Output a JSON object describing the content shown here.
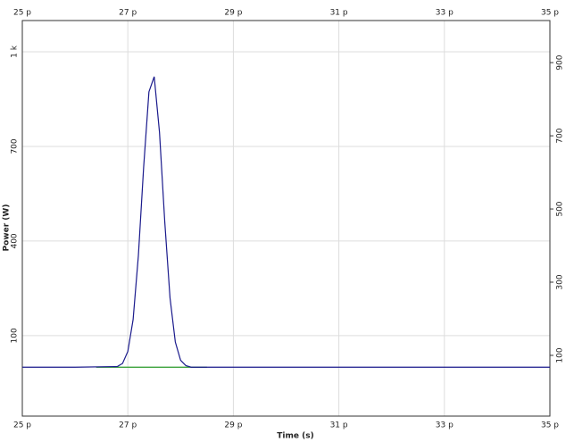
{
  "chart_data": {
    "type": "line",
    "x_label": "Time (s)",
    "y_label": "Power (W)",
    "xlim": [
      2.5e-11,
      3.5e-11
    ],
    "xticks": [
      {
        "value": 2.5e-11,
        "label": "25 p"
      },
      {
        "value": 2.7e-11,
        "label": "27 p"
      },
      {
        "value": 2.9e-11,
        "label": "29 p"
      },
      {
        "value": 3.1e-11,
        "label": "31 p"
      },
      {
        "value": 3.3e-11,
        "label": "33 p"
      },
      {
        "value": 3.5e-11,
        "label": "35 p"
      }
    ],
    "ylim": [
      -155,
      1099
    ],
    "yticks": [
      100,
      400,
      700,
      {
        "value": 1000,
        "label": "1 k"
      }
    ],
    "y2lim": [
      -66,
      1015
    ],
    "y2ticks": [
      100,
      300,
      500,
      700,
      900
    ],
    "grid": true,
    "series": [
      {
        "color": "#2a9a2a",
        "x": [
          2.64e-11,
          2.85e-11
        ],
        "values": [
          0,
          0
        ]
      },
      {
        "color": "#1a1a8c",
        "x": [
          2.5e-11,
          2.6e-11,
          2.68e-11,
          2.69e-11,
          2.7e-11,
          2.71e-11,
          2.72e-11,
          2.73e-11,
          2.74e-11,
          2.75e-11,
          2.76e-11,
          2.77e-11,
          2.78e-11,
          2.79e-11,
          2.8e-11,
          2.81e-11,
          2.82e-11,
          3.5e-11
        ],
        "values": [
          0,
          0,
          2,
          12,
          50,
          151,
          354,
          635,
          873,
          921,
          745,
          461,
          219,
          80,
          22,
          5,
          0,
          0
        ]
      }
    ]
  }
}
